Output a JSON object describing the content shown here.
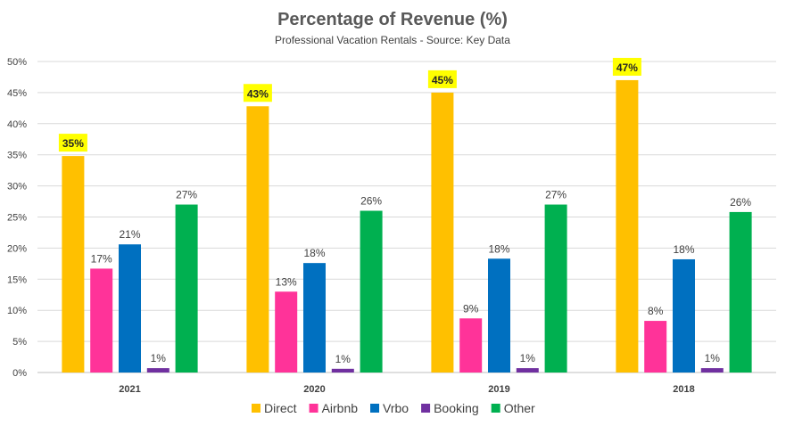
{
  "chart_data": {
    "type": "bar",
    "title": "Percentage of Revenue (%)",
    "subtitle": "Professional Vacation Rentals - Source: Key Data",
    "categories": [
      "2021",
      "2020",
      "2019",
      "2018"
    ],
    "series": [
      {
        "name": "Direct",
        "color": "#FFC000",
        "values": [
          34.8,
          42.8,
          45.0,
          47.0
        ],
        "labels": [
          "35%",
          "43%",
          "45%",
          "47%"
        ],
        "label_highlight": true
      },
      {
        "name": "Airbnb",
        "color": "#FF3399",
        "values": [
          16.7,
          13.0,
          8.7,
          8.3
        ],
        "labels": [
          "17%",
          "13%",
          "9%",
          "8%"
        ]
      },
      {
        "name": "Vrbo",
        "color": "#0070C0",
        "values": [
          20.6,
          17.6,
          18.3,
          18.2
        ],
        "labels": [
          "21%",
          "18%",
          "18%",
          "18%"
        ]
      },
      {
        "name": "Booking",
        "color": "#7030A0",
        "values": [
          0.7,
          0.6,
          0.7,
          0.7
        ],
        "labels": [
          "1%",
          "1%",
          "1%",
          "1%"
        ]
      },
      {
        "name": "Other",
        "color": "#00B050",
        "values": [
          27.0,
          26.0,
          27.0,
          25.8
        ],
        "labels": [
          "27%",
          "26%",
          "27%",
          "26%"
        ]
      }
    ],
    "yticks": [
      "0%",
      "5%",
      "10%",
      "15%",
      "20%",
      "25%",
      "30%",
      "35%",
      "40%",
      "45%",
      "50%"
    ],
    "ylim": [
      0,
      50
    ],
    "xlabel": "",
    "ylabel": "",
    "grid": true,
    "legend": "bottom",
    "highlight_color": "#FFFF00"
  }
}
